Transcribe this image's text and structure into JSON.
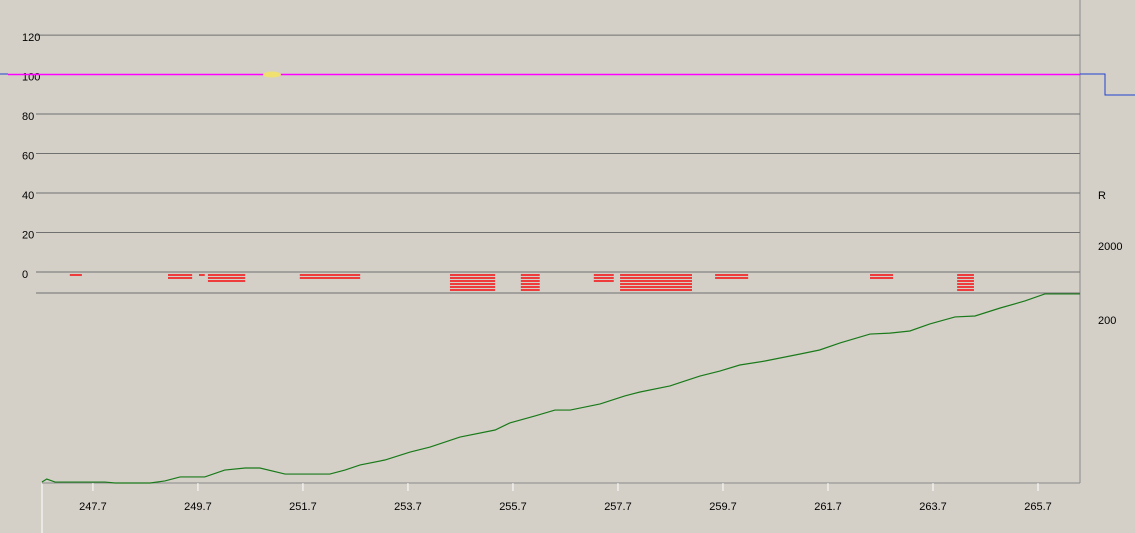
{
  "chart_data": {
    "type": "line",
    "xlim": [
      246.73,
      266.5
    ],
    "xticks": [
      247.7,
      249.7,
      251.7,
      253.7,
      255.7,
      257.7,
      259.7,
      261.7,
      263.7,
      265.7
    ],
    "upper": {
      "ylim": [
        0,
        132.7
      ],
      "yticks": [
        0,
        20,
        40,
        60,
        80,
        100,
        120
      ],
      "reference": {
        "value": 100,
        "color": "#ff00ff"
      },
      "marker": {
        "x": 251.11,
        "y": 100,
        "color": "#f0e070"
      }
    },
    "events": {
      "color": "#ee3b3b",
      "start": [
        247.26,
        249.13,
        249.72,
        249.89,
        251.64,
        254.5,
        255.85,
        257.24,
        257.74,
        259.55,
        262.5,
        264.16
      ],
      "end": [
        247.49,
        249.59,
        249.83,
        250.6,
        252.79,
        255.36,
        256.21,
        257.62,
        259.11,
        260.18,
        262.94,
        264.48
      ],
      "level": [
        1,
        2,
        1,
        3,
        2,
        6,
        6,
        3,
        6,
        2,
        2,
        6
      ]
    },
    "lower": {
      "ylim": [
        0,
        100
      ],
      "series": [
        {
          "color": "#1a7a1a",
          "x": [
            246.73,
            246.82,
            246.98,
            247.93,
            248.12,
            248.79,
            249.07,
            249.36,
            249.83,
            250.21,
            250.6,
            250.88,
            251.36,
            252.21,
            252.5,
            252.79,
            253.26,
            253.74,
            254.12,
            254.69,
            255.36,
            255.64,
            256.12,
            256.5,
            256.79,
            257.36,
            257.83,
            258.12,
            258.69,
            259.26,
            259.64,
            260.02,
            260.5,
            261.17,
            261.54,
            261.93,
            262.5,
            262.88,
            263.26,
            263.64,
            264.12,
            264.5,
            264.98,
            265.45,
            265.83,
            266.5
          ],
          "values": [
            0.5,
            2.1,
            0.5,
            0.5,
            0,
            0,
            1.1,
            3.2,
            3.2,
            6.8,
            7.9,
            7.9,
            4.7,
            4.7,
            6.8,
            9.5,
            12.1,
            16.3,
            18.9,
            24.2,
            27.9,
            31.6,
            35.3,
            38.4,
            38.4,
            41.6,
            45.8,
            47.9,
            51.1,
            56.3,
            58.9,
            62.1,
            64.2,
            67.9,
            70,
            73.7,
            78.4,
            78.9,
            80,
            83.7,
            87.4,
            87.9,
            92.1,
            95.8,
            99.5,
            99.5
          ]
        }
      ]
    },
    "right_labels": [
      "R",
      "2000",
      "200"
    ]
  }
}
